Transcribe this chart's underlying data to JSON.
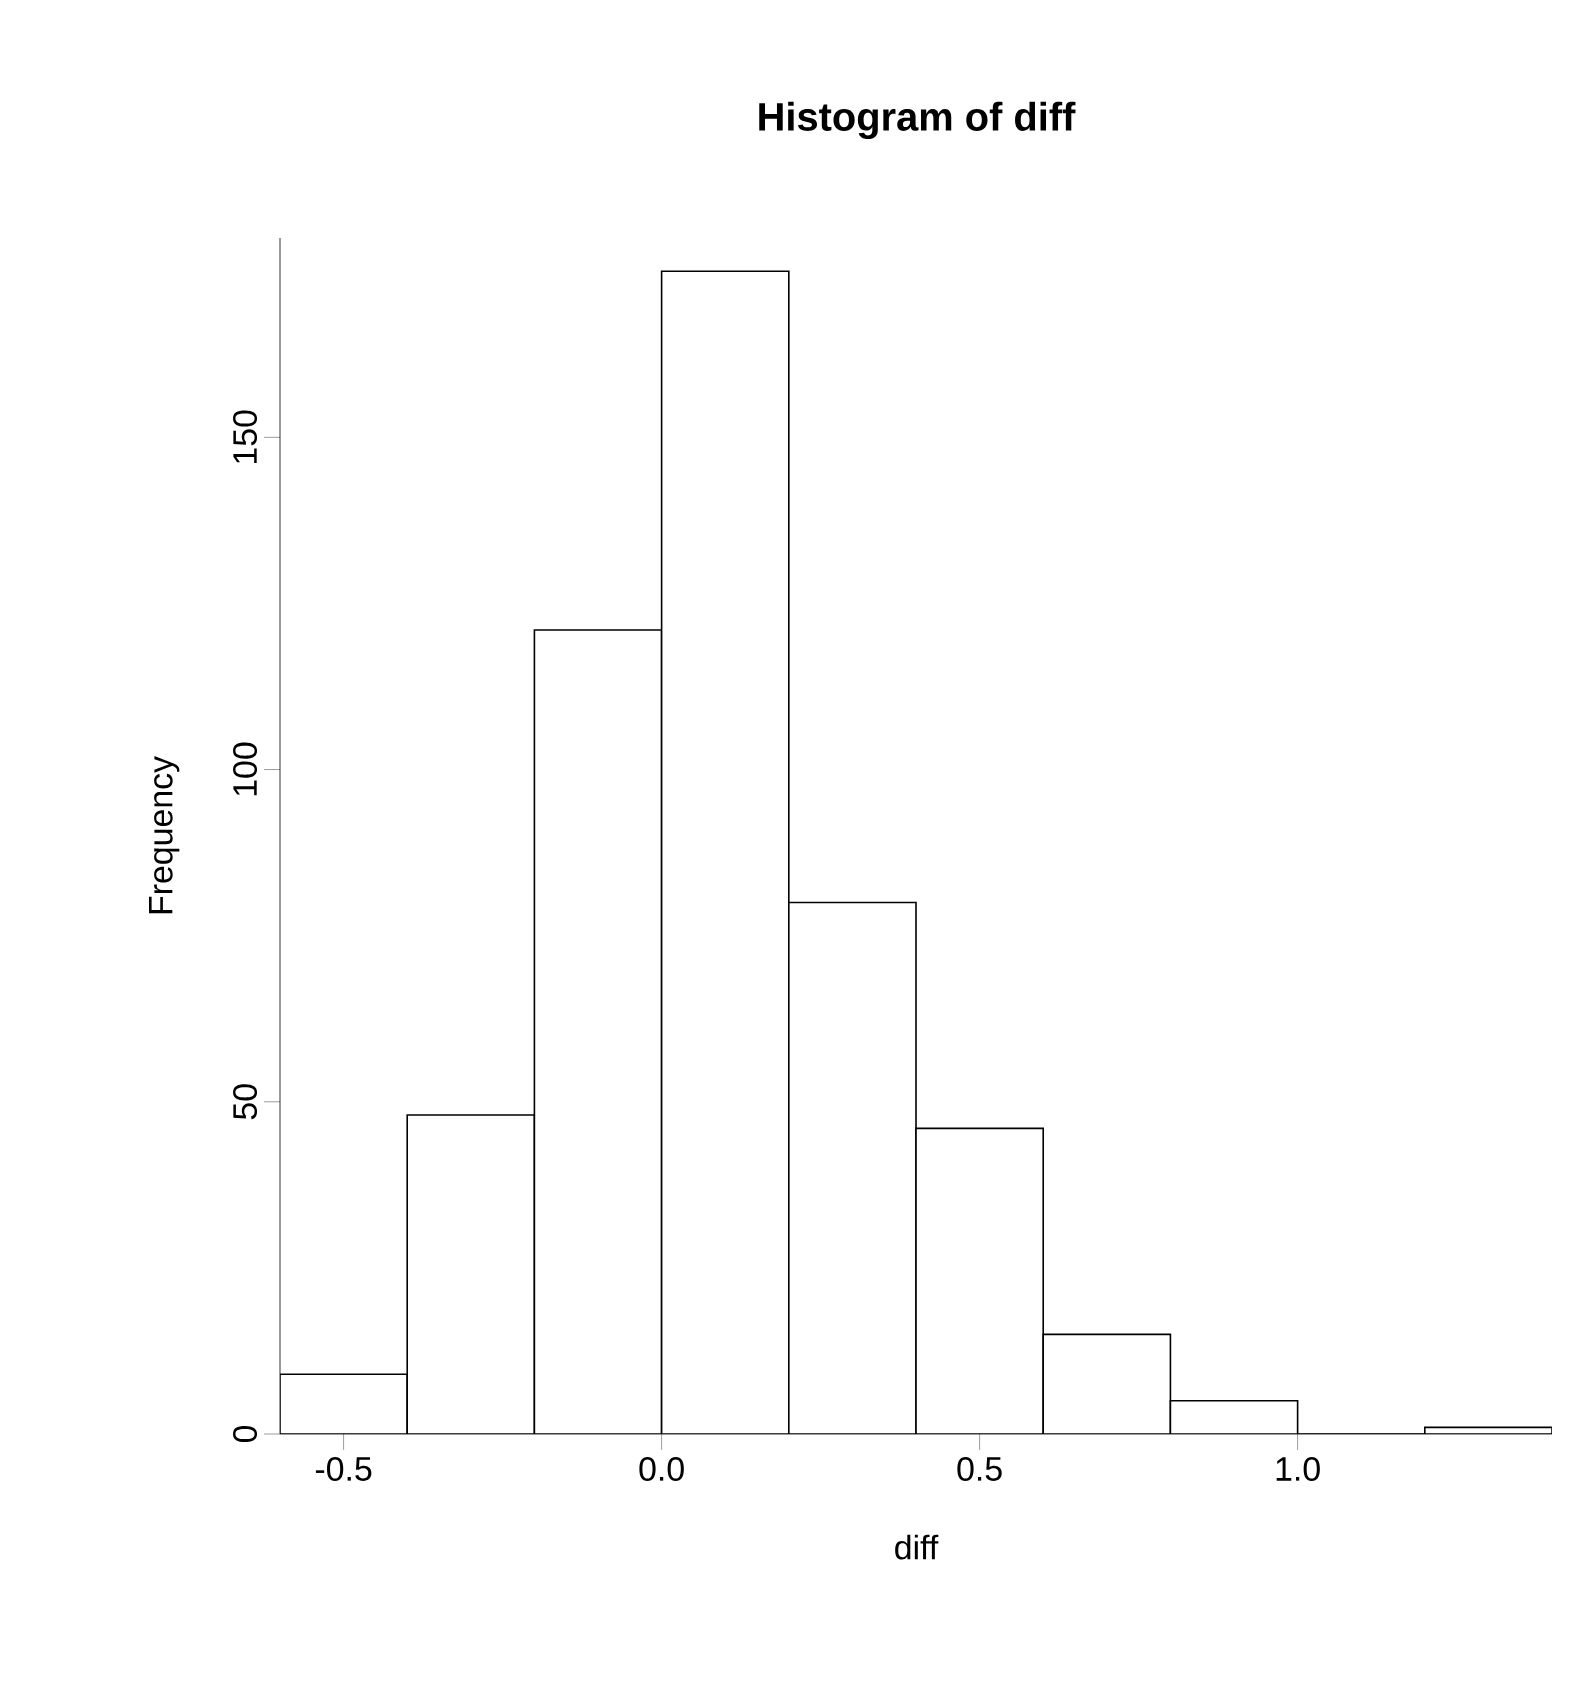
{
  "chart_data": {
    "type": "histogram",
    "title": "Histogram of diff",
    "xlabel": "diff",
    "ylabel": "Frequency",
    "bins": [
      -0.6,
      -0.4,
      -0.2,
      0.0,
      0.2,
      0.4,
      0.6,
      0.8,
      1.0,
      1.2,
      1.4
    ],
    "values": [
      9,
      48,
      121,
      175,
      80,
      46,
      15,
      5,
      0,
      1
    ],
    "xlim": [
      -0.6,
      1.4
    ],
    "ylim": [
      0,
      180
    ],
    "xticks": [
      -0.5,
      {
        "value": 0,
        "label": "0.0"
      },
      0.5,
      {
        "value": 1,
        "label": "1.0"
      }
    ],
    "yticks": [
      0,
      50,
      100,
      150
    ]
  }
}
